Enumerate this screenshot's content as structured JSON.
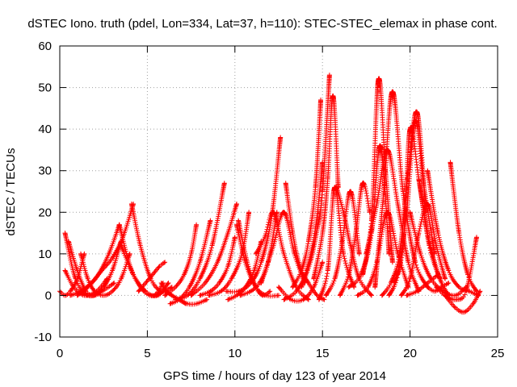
{
  "chart_data": {
    "type": "scatter",
    "title": "dSTEC Iono. truth (pdel, Lon=334, Lat=37, h=110): STEC-STEC_elemax in phase cont.",
    "xlabel": "GPS time / hours of day 123 of year 2014",
    "ylabel": "dSTEC  / TECUs",
    "xlim": [
      0,
      25
    ],
    "ylim": [
      -10,
      60
    ],
    "xticks": [
      0,
      5,
      10,
      15,
      20,
      25
    ],
    "yticks": [
      -10,
      0,
      10,
      20,
      30,
      40,
      50,
      60
    ],
    "grid": true,
    "marker": "+",
    "color": "#ff0000",
    "legend": "none",
    "series": [
      {
        "x": [
          0.3,
          0.9,
          1.6,
          2.4,
          3.1
        ],
        "y": [
          15,
          4,
          0,
          1,
          3
        ]
      },
      {
        "x": [
          0.5,
          1.0,
          1.5,
          2.0,
          2.5,
          3.0,
          3.5
        ],
        "y": [
          13,
          6,
          1,
          0,
          2,
          6,
          13
        ]
      },
      {
        "x": [
          0.3,
          0.8,
          1.4,
          2.1,
          2.7
        ],
        "y": [
          6,
          2,
          0,
          1,
          4
        ]
      },
      {
        "x": [
          0.0,
          0.3,
          0.6,
          1.0,
          1.4
        ],
        "y": [
          1,
          0,
          1,
          4,
          10
        ]
      },
      {
        "x": [
          0.6,
          1.2,
          1.8,
          2.4,
          3.0,
          3.6,
          4.2
        ],
        "y": [
          0,
          1,
          3,
          6,
          9,
          14,
          22
        ]
      },
      {
        "x": [
          1.0,
          1.6,
          2.2,
          2.8,
          3.4
        ],
        "y": [
          0,
          2,
          5,
          10,
          17
        ]
      },
      {
        "x": [
          1.2,
          1.6,
          2.0,
          2.5,
          3.0,
          3.5,
          4.0
        ],
        "y": [
          10,
          4,
          1,
          0,
          1,
          4,
          10
        ]
      },
      {
        "x": [
          3.4,
          4.1,
          4.9,
          5.6,
          6.2
        ],
        "y": [
          17,
          6,
          1,
          0,
          3
        ]
      },
      {
        "x": [
          4.1,
          4.6,
          5.2,
          5.8,
          6.4
        ],
        "y": [
          22,
          12,
          4,
          1,
          2
        ]
      },
      {
        "x": [
          3.5,
          4.2,
          4.8,
          5.4,
          5.9
        ],
        "y": [
          12,
          5,
          1,
          0,
          3
        ]
      },
      {
        "x": [
          4.5,
          4.9,
          5.3,
          5.7,
          6.0
        ],
        "y": [
          1,
          3,
          5,
          7,
          8
        ]
      },
      {
        "x": [
          5.5,
          6.0,
          6.4,
          6.8,
          7.2
        ],
        "y": [
          0,
          1,
          0,
          -1,
          -2
        ]
      },
      {
        "x": [
          5.8,
          6.1,
          6.4,
          6.8,
          7.3,
          7.8,
          8.4
        ],
        "y": [
          3,
          1,
          0,
          -1,
          -2,
          -2,
          -1
        ]
      },
      {
        "x": [
          6.3,
          6.8,
          7.4,
          8.0,
          8.6
        ],
        "y": [
          -2,
          -1,
          2,
          8,
          18
        ]
      },
      {
        "x": [
          6.0,
          6.6,
          7.1,
          7.5,
          7.8
        ],
        "y": [
          0,
          2,
          5,
          10,
          17
        ]
      },
      {
        "x": [
          6.6,
          7.3,
          8.0,
          8.7,
          9.4
        ],
        "y": [
          -1,
          0,
          4,
          12,
          27
        ]
      },
      {
        "x": [
          7.5,
          8.3,
          9.0,
          9.6,
          10.1
        ],
        "y": [
          0,
          3,
          8,
          15,
          22
        ]
      },
      {
        "x": [
          8.0,
          8.6,
          9.1,
          9.6,
          10.0
        ],
        "y": [
          0,
          1,
          3,
          7,
          14
        ]
      },
      {
        "x": [
          8.5,
          9.2,
          9.8,
          10.4,
          10.8
        ],
        "y": [
          0,
          1,
          4,
          10,
          20
        ]
      },
      {
        "x": [
          9.5,
          10.2,
          10.9,
          11.5,
          12.1,
          12.6
        ],
        "y": [
          1,
          1,
          3,
          8,
          19,
          38
        ]
      },
      {
        "x": [
          9.6,
          10.1,
          10.6,
          11.1,
          11.5
        ],
        "y": [
          -1,
          0,
          2,
          6,
          13
        ]
      },
      {
        "x": [
          10.3,
          10.9,
          11.4,
          11.9,
          12.4
        ],
        "y": [
          0,
          1,
          3,
          8,
          20
        ]
      },
      {
        "x": [
          10.2,
          10.7,
          11.2,
          11.6,
          12.0
        ],
        "y": [
          18,
          8,
          2,
          0,
          1
        ]
      },
      {
        "x": [
          10.1,
          10.6,
          11.2,
          11.8,
          12.5
        ],
        "y": [
          17,
          8,
          2,
          0,
          0
        ]
      },
      {
        "x": [
          11.2,
          11.7,
          12.2,
          12.8,
          13.5,
          14.2
        ],
        "y": [
          10,
          14,
          20,
          10,
          2,
          -1
        ]
      },
      {
        "x": [
          11.5,
          12.2,
          12.8,
          13.4,
          14.0
        ],
        "y": [
          3,
          12,
          20,
          10,
          3
        ]
      },
      {
        "x": [
          12.5,
          13.2,
          13.9,
          14.5,
          15.0
        ],
        "y": [
          2,
          -1,
          -1,
          2,
          8
        ]
      },
      {
        "x": [
          12.9,
          13.3,
          13.7,
          14.2,
          14.7,
          15.1
        ],
        "y": [
          27,
          15,
          7,
          3,
          0,
          -1
        ]
      },
      {
        "x": [
          12.8,
          13.5,
          14.1,
          14.6,
          15.0
        ],
        "y": [
          -1,
          1,
          6,
          16,
          32
        ]
      },
      {
        "x": [
          13.3,
          13.8,
          14.2,
          14.6,
          14.9
        ],
        "y": [
          2,
          6,
          13,
          26,
          47
        ]
      },
      {
        "x": [
          13.8,
          14.3,
          14.7,
          15.0,
          15.4
        ],
        "y": [
          2,
          8,
          16,
          25,
          53
        ]
      },
      {
        "x": [
          14.5,
          15.0,
          15.3,
          15.6,
          15.9
        ],
        "y": [
          4,
          15,
          28,
          48,
          26
        ]
      },
      {
        "x": [
          14.8,
          15.3,
          15.7,
          16.2,
          16.8
        ],
        "y": [
          -1,
          6,
          26,
          10,
          2
        ]
      },
      {
        "x": [
          15.2,
          15.7,
          16.1,
          16.6,
          17.1
        ],
        "y": [
          0,
          4,
          12,
          25,
          10
        ]
      },
      {
        "x": [
          15.8,
          16.2,
          16.6,
          17.1,
          17.8
        ],
        "y": [
          26,
          20,
          12,
          4,
          0
        ]
      },
      {
        "x": [
          16.0,
          16.5,
          16.9,
          17.3,
          17.7
        ],
        "y": [
          0,
          5,
          15,
          27,
          20
        ]
      },
      {
        "x": [
          16.5,
          17.2,
          17.8,
          18.3,
          18.8
        ],
        "y": [
          2,
          5,
          15,
          36,
          10
        ]
      },
      {
        "x": [
          17.3,
          17.8,
          18.2,
          18.6,
          19.0
        ],
        "y": [
          5,
          18,
          52,
          30,
          8
        ]
      },
      {
        "x": [
          17.0,
          17.6,
          18.1,
          18.7,
          19.3,
          19.9
        ],
        "y": [
          0,
          2,
          8,
          20,
          10,
          2
        ]
      },
      {
        "x": [
          17.5,
          18.1,
          18.7,
          19.3,
          19.9,
          20.5
        ],
        "y": [
          10,
          22,
          35,
          22,
          8,
          1
        ]
      },
      {
        "x": [
          18.0,
          18.5,
          19.0,
          19.6,
          20.3,
          21.0
        ],
        "y": [
          2,
          25,
          49,
          25,
          8,
          2
        ]
      },
      {
        "x": [
          18.4,
          18.9,
          19.4,
          19.9,
          20.4,
          20.9
        ],
        "y": [
          0,
          3,
          10,
          30,
          44,
          20
        ]
      },
      {
        "x": [
          18.8,
          19.3,
          19.8,
          20.3,
          20.8,
          21.4
        ],
        "y": [
          0,
          5,
          20,
          42,
          26,
          10
        ]
      },
      {
        "x": [
          19.1,
          19.6,
          20.0,
          20.5,
          21.1,
          21.7
        ],
        "y": [
          3,
          12,
          40,
          28,
          12,
          4
        ]
      },
      {
        "x": [
          19.5,
          20.0,
          20.5,
          21.0,
          21.5,
          22.0
        ],
        "y": [
          0,
          4,
          15,
          22,
          12,
          4
        ]
      },
      {
        "x": [
          20.0,
          20.6,
          21.2,
          21.9,
          22.6,
          23.2
        ],
        "y": [
          20,
          10,
          4,
          1,
          0,
          2
        ]
      },
      {
        "x": [
          20.5,
          21.0,
          21.4,
          21.8,
          22.2
        ],
        "y": [
          28,
          15,
          8,
          3,
          0
        ]
      },
      {
        "x": [
          21.0,
          21.6,
          22.2,
          22.8,
          23.4,
          23.9
        ],
        "y": [
          30,
          15,
          6,
          2,
          1,
          0
        ]
      },
      {
        "x": [
          21.5,
          22.0,
          22.6,
          23.2,
          23.8
        ],
        "y": [
          2,
          0,
          -1,
          1,
          14
        ]
      },
      {
        "x": [
          22.3,
          22.8,
          23.3,
          23.8
        ],
        "y": [
          32,
          15,
          5,
          1
        ]
      },
      {
        "x": [
          22.0,
          22.6,
          23.1,
          23.6,
          24.0
        ],
        "y": [
          0,
          -3,
          -4,
          -2,
          1
        ]
      },
      {
        "x": [
          21.0,
          21.4,
          21.8,
          22.2
        ],
        "y": [
          2,
          1,
          2,
          3
        ]
      },
      {
        "x": [
          19.8,
          20.4,
          21.0,
          21.6
        ],
        "y": [
          0,
          1,
          3,
          5
        ]
      }
    ]
  }
}
